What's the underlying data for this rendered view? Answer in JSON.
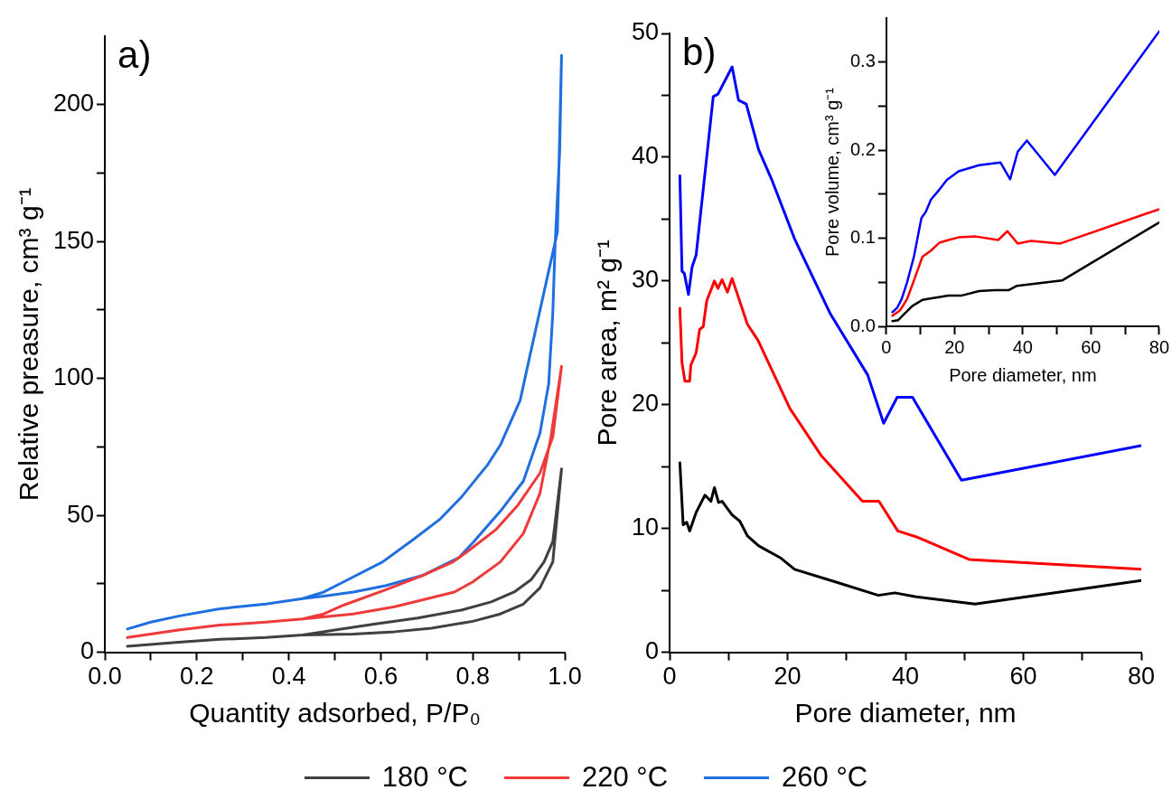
{
  "chart_data": [
    {
      "type": "line",
      "title": "a)",
      "xlabel": "Quantity adsorbed, P/P₀",
      "ylabel": "Relative preasure, cm³ g⁻¹",
      "xlim": [
        0,
        1
      ],
      "xticks": [
        {
          "value": 0,
          "label": "0.0"
        },
        {
          "value": 0.1,
          "label": null
        },
        0.2,
        {
          "value": 0.3,
          "label": null
        },
        0.4,
        {
          "value": 0.5,
          "label": null
        },
        0.6,
        {
          "value": 0.7,
          "label": null
        },
        0.8,
        {
          "value": 0.9,
          "label": null
        },
        {
          "value": 1,
          "label": "1.0"
        }
      ],
      "ylim": [
        0,
        225
      ],
      "yticks": [
        0,
        {
          "value": 25,
          "label": null
        },
        50,
        {
          "value": 75,
          "label": null
        },
        100,
        {
          "value": 125,
          "label": null
        },
        150,
        {
          "value": 175,
          "label": null
        },
        200
      ],
      "grid": false,
      "legend": "bottom",
      "marker": "none",
      "line_style": "solid",
      "series": [
        {
          "name": "180 °C",
          "color": "#404040",
          "x": [
            0.049,
            0.16,
            0.25,
            0.35,
            0.43,
            0.54,
            0.63,
            0.71,
            0.8,
            0.86,
            0.91,
            0.946,
            0.974,
            0.993,
            0.974,
            0.955,
            0.927,
            0.89,
            0.84,
            0.775,
            0.68,
            0.585,
            0.5,
            0.43
          ],
          "values": [
            2.2,
            3.7,
            4.7,
            5.4,
            6.3,
            6.6,
            7.5,
            8.8,
            11.3,
            14,
            17.6,
            23.5,
            33,
            67,
            40.4,
            33,
            26.5,
            22,
            18.4,
            15.4,
            12.5,
            10.3,
            8.1,
            6.3
          ]
        },
        {
          "name": "220 °C",
          "color": "#ee3a3a",
          "x": [
            0.049,
            0.16,
            0.25,
            0.35,
            0.43,
            0.54,
            0.63,
            0.71,
            0.76,
            0.8,
            0.86,
            0.91,
            0.946,
            0.97,
            0.993,
            0.974,
            0.946,
            0.898,
            0.851,
            0.794,
            0.757,
            0.69,
            0.61,
            0.519,
            0.476,
            0.43
          ],
          "values": [
            5.4,
            8.1,
            9.9,
            11,
            12.2,
            14,
            16.6,
            19.9,
            22,
            25.7,
            33,
            43.4,
            58,
            78.7,
            104.4,
            78.7,
            65.4,
            53.7,
            44.9,
            37.5,
            33,
            28,
            22.8,
            17.2,
            14,
            12.2
          ]
        },
        {
          "name": "260 °C",
          "color": "#1f6fe0",
          "x": [
            0.049,
            0.1,
            0.16,
            0.25,
            0.35,
            0.43,
            0.48,
            0.54,
            0.61,
            0.69,
            0.77,
            0.8,
            0.86,
            0.91,
            0.946,
            0.965,
            0.974,
            0.979,
            0.989,
            0.993,
            0.984,
            0.955,
            0.922,
            0.903,
            0.86,
            0.832,
            0.775,
            0.728,
            0.671,
            0.604,
            0.519,
            0.476,
            0.43
          ],
          "values": [
            8.5,
            11,
            13.2,
            15.9,
            17.6,
            19.6,
            20.6,
            22,
            24.3,
            28,
            34.6,
            40,
            51.5,
            62.5,
            80,
            98,
            124,
            149,
            183,
            218,
            153.5,
            131.6,
            106.6,
            92,
            75.7,
            68.4,
            56.6,
            48.5,
            41.2,
            33,
            25.7,
            22,
            19.6
          ]
        }
      ]
    },
    {
      "type": "line",
      "title": "b)",
      "xlabel": "Pore diameter, nm",
      "ylabel": "Pore area, m² g⁻¹",
      "xlim": [
        0,
        80
      ],
      "xticks": [
        0,
        {
          "value": 10,
          "label": null
        },
        20,
        {
          "value": 30,
          "label": null
        },
        40,
        {
          "value": 50,
          "label": null
        },
        60,
        {
          "value": 70,
          "label": null
        },
        80
      ],
      "ylim": [
        0,
        50
      ],
      "yticks": [
        0,
        {
          "value": 5,
          "label": null
        },
        10,
        {
          "value": 15,
          "label": null
        },
        20,
        {
          "value": 25,
          "label": null
        },
        30,
        {
          "value": 35,
          "label": null
        },
        40,
        {
          "value": 45,
          "label": null
        },
        50
      ],
      "grid": false,
      "marker": "none",
      "line_style": "solid",
      "series": [
        {
          "color": "#000000",
          "x": [
            1.74,
            2.3,
            2.9,
            3.4,
            4.5,
            6,
            7,
            7.6,
            8.3,
            8.9,
            10.6,
            11.9,
            13.2,
            15.1,
            18.9,
            21.2,
            28,
            35.4,
            38.2,
            41.6,
            51.8,
            80
          ],
          "values": [
            15.3,
            10.3,
            10.5,
            9.8,
            11.3,
            12.7,
            12.2,
            13.3,
            12.1,
            12.2,
            11.1,
            10.6,
            9.4,
            8.6,
            7.6,
            6.7,
            5.7,
            4.6,
            4.8,
            4.5,
            3.9,
            5.8
          ]
        },
        {
          "color": "#ff0000",
          "x": [
            1.74,
            2.1,
            2.6,
            3.4,
            3.6,
            4.5,
            5.1,
            5.7,
            6.3,
            7.6,
            8.2,
            8.9,
            9.8,
            10.6,
            13.2,
            15,
            20.4,
            25.7,
            32.7,
            35.5,
            38.7,
            42,
            50.8,
            80
          ],
          "values": [
            27.8,
            23.4,
            21.9,
            21.9,
            23.2,
            24.2,
            26.1,
            26.3,
            28.4,
            30,
            29.4,
            30.1,
            29.1,
            30.2,
            26.5,
            25.2,
            19.7,
            15.9,
            12.2,
            12.2,
            9.8,
            9.3,
            7.5,
            6.7
          ]
        },
        {
          "color": "#0000ff",
          "x": [
            1.74,
            2.1,
            2.5,
            3.2,
            3.8,
            4.5,
            7.4,
            8.2,
            10.6,
            11.7,
            13,
            15.1,
            17.4,
            21.2,
            27.2,
            33.6,
            36.3,
            38.6,
            41.2,
            49.5,
            80
          ],
          "values": [
            38.5,
            30.8,
            30.6,
            28.9,
            31.1,
            32.1,
            44.9,
            45.1,
            47.3,
            44.6,
            44.3,
            40.6,
            38.1,
            33.4,
            27.4,
            22.4,
            18.5,
            20.6,
            20.6,
            13.9,
            16.7
          ]
        }
      ]
    },
    {
      "type": "line",
      "xlabel": "Pore diameter, nm",
      "ylabel": "Pore volume, cm³ g⁻¹",
      "xlim": [
        0,
        80
      ],
      "xticks": [
        0,
        {
          "value": 10,
          "label": null
        },
        20,
        {
          "value": 30,
          "label": null
        },
        40,
        {
          "value": 50,
          "label": null
        },
        60,
        {
          "value": 70,
          "label": null
        },
        80
      ],
      "ylim": [
        0,
        0.35
      ],
      "yticks": [
        {
          "value": 0,
          "label": "0.0"
        },
        {
          "value": 0.05,
          "label": null
        },
        0.1,
        {
          "value": 0.15,
          "label": null
        },
        0.2,
        {
          "value": 0.25,
          "label": null
        },
        0.3
      ],
      "grid": false,
      "marker": "none",
      "line_style": "solid",
      "series": [
        {
          "color": "#000000",
          "x": [
            1.8,
            3.5,
            5,
            7.6,
            10.6,
            12.1,
            18.2,
            22.2,
            27.2,
            31.8,
            35.8,
            38.3,
            51.5,
            80
          ],
          "values": [
            0.006,
            0.007,
            0.013,
            0.023,
            0.03,
            0.031,
            0.035,
            0.035,
            0.04,
            0.041,
            0.041,
            0.046,
            0.052,
            0.118
          ]
        },
        {
          "color": "#ff0000",
          "x": [
            1.8,
            4,
            6.1,
            8.1,
            10.6,
            13.1,
            15.6,
            18.2,
            21.2,
            26.2,
            32.8,
            35.5,
            38.5,
            42.4,
            51,
            80
          ],
          "values": [
            0.012,
            0.018,
            0.031,
            0.052,
            0.079,
            0.086,
            0.095,
            0.098,
            0.101,
            0.102,
            0.098,
            0.108,
            0.094,
            0.097,
            0.094,
            0.133
          ]
        },
        {
          "color": "#0000ff",
          "x": [
            1.8,
            3.2,
            4.5,
            6.1,
            8.1,
            10.3,
            11.6,
            13.1,
            15.1,
            17.7,
            21.2,
            27.2,
            33.5,
            36.3,
            38.5,
            41.2,
            49.4,
            80
          ],
          "values": [
            0.016,
            0.021,
            0.031,
            0.05,
            0.079,
            0.123,
            0.13,
            0.144,
            0.153,
            0.166,
            0.176,
            0.183,
            0.186,
            0.167,
            0.198,
            0.211,
            0.172,
            0.335
          ]
        }
      ]
    }
  ]
}
